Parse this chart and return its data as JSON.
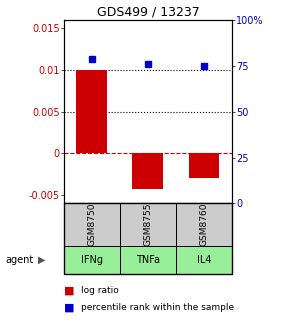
{
  "title": "GDS499 / 13237",
  "categories": [
    1,
    2,
    3
  ],
  "sample_labels": [
    "GSM8750",
    "GSM8755",
    "GSM8760"
  ],
  "agent_labels": [
    "IFNg",
    "TNFa",
    "IL4"
  ],
  "log_ratios": [
    0.01,
    -0.0043,
    -0.003
  ],
  "percentile_ranks": [
    79,
    76,
    75
  ],
  "bar_color": "#cc0000",
  "dot_color": "#0000cc",
  "ylim_left": [
    -0.006,
    0.016
  ],
  "ylim_right": [
    0,
    100
  ],
  "yticks_left": [
    -0.005,
    0,
    0.005,
    0.01,
    0.015
  ],
  "yticks_right": [
    0,
    25,
    50,
    75,
    100
  ],
  "left_tick_labels": [
    "-0.005",
    "0",
    "0.005",
    "0.01",
    "0.015"
  ],
  "right_tick_labels": [
    "0",
    "25",
    "50",
    "75",
    "100%"
  ],
  "zero_line_color": "#cc0000",
  "dotted_line_color": "#000000",
  "agent_bg_color": "#99ee99",
  "sample_bg_color": "#cccccc",
  "bar_width": 0.55,
  "dot_size": 5,
  "title_fontsize": 9,
  "tick_fontsize": 7,
  "label_fontsize": 7
}
